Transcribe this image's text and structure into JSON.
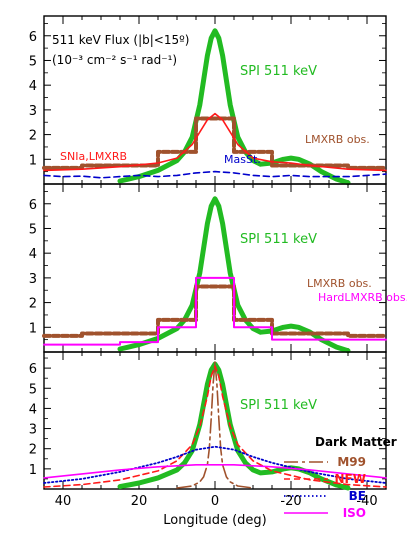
{
  "figure": {
    "xlabel": "Longitude (deg)",
    "xlim": [
      45,
      -45
    ],
    "x_ticks": [
      40,
      20,
      0,
      -20,
      -40
    ],
    "colors": {
      "spi": "#22bb22",
      "brown": "#a0522d",
      "red": "#ff1a1a",
      "blue": "#0000cc",
      "magenta": "#ff00ff",
      "black": "#000000"
    }
  },
  "chart_data": [
    {
      "type": "line",
      "panel": "top",
      "title_lines": [
        "511 keV Flux (|b|<15º)",
        "(10⁻³ cm⁻² s⁻¹ rad⁻¹)"
      ],
      "ylim": [
        0,
        6.8
      ],
      "y_ticks": [
        1,
        2,
        3,
        4,
        5,
        6
      ],
      "annotations": [
        {
          "text": "SPI 511 keV",
          "color": "#22bb22"
        },
        {
          "text": "LMXRB obs.",
          "color": "#a0522d"
        },
        {
          "text": "SNIa,LMXRB",
          "color": "#ff1a1a"
        },
        {
          "text": "MasSt.",
          "color": "#0000cc"
        }
      ],
      "series": [
        {
          "name": "SPI 511 keV",
          "style": "solid-thick",
          "color": "#22bb22",
          "x": [
            25,
            20,
            15,
            10,
            8,
            6,
            4,
            3,
            2,
            1,
            0,
            -1,
            -2,
            -3,
            -4,
            -6,
            -8,
            -10,
            -12,
            -15,
            -18,
            -20,
            -22,
            -25,
            -28,
            -32,
            -35
          ],
          "y": [
            0.12,
            0.3,
            0.55,
            0.95,
            1.3,
            1.9,
            3.2,
            4.2,
            5.2,
            5.9,
            6.2,
            5.9,
            5.2,
            4.2,
            3.2,
            1.9,
            1.3,
            0.95,
            0.8,
            0.85,
            1.0,
            1.05,
            1.0,
            0.8,
            0.5,
            0.2,
            0.05
          ]
        },
        {
          "name": "LMXRB obs.",
          "style": "dotted-thick",
          "color": "#a0522d",
          "x": [
            45,
            35,
            35,
            15,
            15,
            5,
            5,
            -5,
            -5,
            -15,
            -15,
            -25,
            -25,
            -35,
            -35,
            -45
          ],
          "y": [
            0.65,
            0.65,
            0.75,
            0.75,
            1.3,
            1.3,
            2.65,
            2.65,
            1.3,
            1.3,
            0.75,
            0.75,
            0.75,
            0.75,
            0.65,
            0.65
          ]
        },
        {
          "name": "SNIa,LMXRB",
          "style": "solid-thin",
          "color": "#ff1a1a",
          "x": [
            45,
            35,
            25,
            15,
            10,
            6,
            4,
            2,
            0,
            -2,
            -4,
            -6,
            -10,
            -15,
            -20,
            -25,
            -35,
            -45
          ],
          "y": [
            0.55,
            0.6,
            0.7,
            0.85,
            1.05,
            1.6,
            2.1,
            2.6,
            2.85,
            2.6,
            2.1,
            1.6,
            1.05,
            0.9,
            0.85,
            0.75,
            0.6,
            0.55
          ]
        },
        {
          "name": "MasSt.",
          "style": "dashed",
          "color": "#0000cc",
          "x": [
            45,
            40,
            35,
            30,
            25,
            20,
            15,
            10,
            5,
            0,
            -5,
            -10,
            -15,
            -20,
            -25,
            -30,
            -35,
            -40,
            -45
          ],
          "y": [
            0.35,
            0.3,
            0.32,
            0.25,
            0.3,
            0.35,
            0.3,
            0.35,
            0.45,
            0.5,
            0.45,
            0.35,
            0.3,
            0.35,
            0.3,
            0.3,
            0.3,
            0.35,
            0.4
          ]
        }
      ]
    },
    {
      "type": "line",
      "panel": "middle",
      "ylim": [
        0,
        6.8
      ],
      "y_ticks": [
        1,
        2,
        3,
        4,
        5,
        6
      ],
      "annotations": [
        {
          "text": "SPI 511 keV",
          "color": "#22bb22"
        },
        {
          "text": "LMXRB obs.",
          "color": "#a0522d"
        },
        {
          "text": "HardLMXRB obs.",
          "color": "#ff00ff"
        }
      ],
      "series": [
        {
          "name": "SPI 511 keV",
          "style": "solid-thick",
          "color": "#22bb22",
          "x": [
            25,
            20,
            15,
            10,
            8,
            6,
            4,
            3,
            2,
            1,
            0,
            -1,
            -2,
            -3,
            -4,
            -6,
            -8,
            -10,
            -12,
            -15,
            -18,
            -20,
            -22,
            -25,
            -28,
            -32,
            -35
          ],
          "y": [
            0.12,
            0.3,
            0.55,
            0.95,
            1.3,
            1.9,
            3.2,
            4.2,
            5.2,
            5.9,
            6.2,
            5.9,
            5.2,
            4.2,
            3.2,
            1.9,
            1.3,
            0.95,
            0.8,
            0.85,
            1.0,
            1.05,
            1.0,
            0.8,
            0.5,
            0.2,
            0.05
          ]
        },
        {
          "name": "LMXRB obs.",
          "style": "dotted-thick",
          "color": "#a0522d",
          "x": [
            45,
            35,
            35,
            15,
            15,
            5,
            5,
            -5,
            -5,
            -15,
            -15,
            -25,
            -25,
            -35,
            -35,
            -45
          ],
          "y": [
            0.65,
            0.65,
            0.75,
            0.75,
            1.3,
            1.3,
            2.65,
            2.65,
            1.3,
            1.3,
            0.75,
            0.75,
            0.75,
            0.75,
            0.65,
            0.65
          ]
        },
        {
          "name": "HardLMXRB obs.",
          "style": "solid-step",
          "color": "#ff00ff",
          "x": [
            45,
            25,
            25,
            15,
            15,
            5,
            5,
            -5,
            -5,
            -15,
            -15,
            -25,
            -25,
            -45
          ],
          "y": [
            0.3,
            0.3,
            0.4,
            0.4,
            1.0,
            1.0,
            3.0,
            3.0,
            1.0,
            1.0,
            0.5,
            0.5,
            0.5,
            0.5
          ]
        }
      ]
    },
    {
      "type": "line",
      "panel": "bottom",
      "ylim": [
        0,
        6.8
      ],
      "y_ticks": [
        1,
        2,
        3,
        4,
        5,
        6
      ],
      "annotations": [
        {
          "text": "SPI 511 keV",
          "color": "#22bb22"
        },
        {
          "text": "Dark Matter",
          "color": "#000000"
        }
      ],
      "legend": [
        {
          "name": "M99",
          "style": "longdash",
          "color": "#a0522d"
        },
        {
          "name": "NFW",
          "style": "dashed",
          "color": "#ff1a1a"
        },
        {
          "name": "BE",
          "style": "dotted",
          "color": "#0000cc"
        },
        {
          "name": "ISO",
          "style": "solid-thin",
          "color": "#ff00ff"
        }
      ],
      "series": [
        {
          "name": "SPI 511 keV",
          "style": "solid-thick",
          "color": "#22bb22",
          "x": [
            25,
            20,
            15,
            10,
            8,
            6,
            4,
            3,
            2,
            1,
            0,
            -1,
            -2,
            -3,
            -4,
            -6,
            -8,
            -10,
            -12,
            -15,
            -18,
            -20,
            -22,
            -25,
            -28,
            -32,
            -35
          ],
          "y": [
            0.12,
            0.3,
            0.55,
            0.95,
            1.3,
            1.9,
            3.2,
            4.2,
            5.2,
            5.9,
            6.2,
            5.9,
            5.2,
            4.2,
            3.2,
            1.9,
            1.3,
            0.95,
            0.8,
            0.85,
            1.0,
            1.05,
            1.0,
            0.8,
            0.5,
            0.2,
            0.05
          ]
        },
        {
          "name": "M99",
          "style": "longdash",
          "color": "#a0522d",
          "x": [
            10,
            6,
            4,
            3,
            2,
            1.5,
            1,
            0.5,
            0,
            -0.5,
            -1,
            -1.5,
            -2,
            -3,
            -4,
            -6,
            -10
          ],
          "y": [
            0.05,
            0.15,
            0.35,
            0.6,
            1.2,
            2.0,
            3.5,
            5.2,
            6.3,
            5.2,
            3.5,
            2.0,
            1.2,
            0.6,
            0.35,
            0.15,
            0.05
          ]
        },
        {
          "name": "NFW",
          "style": "dashed",
          "color": "#ff1a1a",
          "x": [
            45,
            35,
            25,
            15,
            10,
            6,
            4,
            2,
            1,
            0,
            -1,
            -2,
            -4,
            -6,
            -10,
            -15,
            -25,
            -35,
            -45
          ],
          "y": [
            0.1,
            0.22,
            0.45,
            0.9,
            1.4,
            2.2,
            3.1,
            4.6,
            5.6,
            6.1,
            5.6,
            4.6,
            3.1,
            2.2,
            1.4,
            0.9,
            0.45,
            0.22,
            0.1
          ]
        },
        {
          "name": "BE",
          "style": "dotted",
          "color": "#0000cc",
          "x": [
            45,
            35,
            25,
            15,
            10,
            5,
            0,
            -5,
            -10,
            -15,
            -25,
            -35,
            -45
          ],
          "y": [
            0.3,
            0.5,
            0.85,
            1.3,
            1.6,
            1.95,
            2.1,
            1.95,
            1.6,
            1.3,
            0.85,
            0.5,
            0.3
          ]
        },
        {
          "name": "ISO",
          "style": "solid-thin",
          "color": "#ff00ff",
          "x": [
            45,
            35,
            25,
            15,
            10,
            5,
            0,
            -5,
            -10,
            -15,
            -25,
            -35,
            -45
          ],
          "y": [
            0.55,
            0.75,
            0.95,
            1.1,
            1.15,
            1.2,
            1.2,
            1.2,
            1.15,
            1.1,
            0.95,
            0.75,
            0.55
          ]
        }
      ]
    }
  ]
}
